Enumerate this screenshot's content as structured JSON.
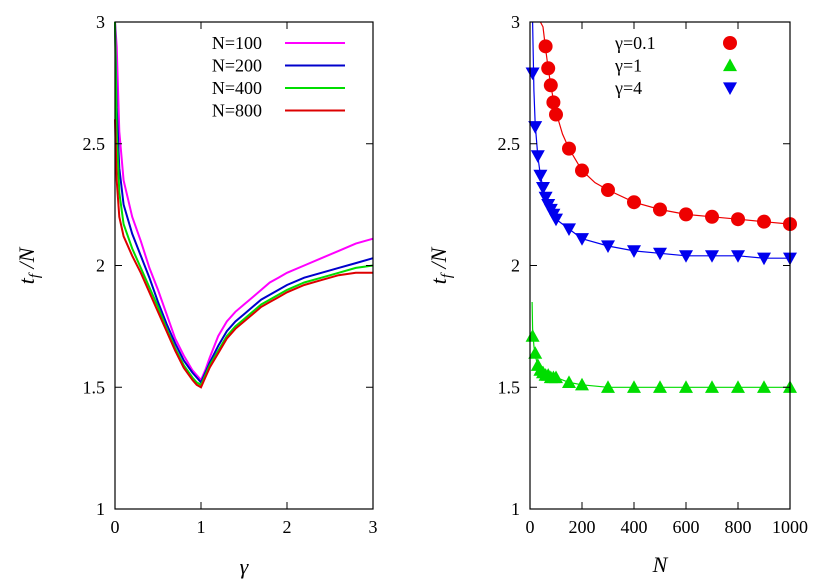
{
  "chart_data": [
    {
      "type": "line",
      "xlabel": "γ",
      "ylabel": "t_f /N",
      "xlim": [
        0,
        3
      ],
      "ylim": [
        1,
        3
      ],
      "xticks": [
        "0",
        "1",
        "2",
        "3"
      ],
      "yticks": [
        "1",
        "1.5",
        "2",
        "2.5",
        "3"
      ],
      "grid": false,
      "legend_position": "top-right",
      "series": [
        {
          "name": "N=100",
          "color": "#ff00ff",
          "x": [
            0,
            0.02,
            0.05,
            0.1,
            0.2,
            0.3,
            0.4,
            0.5,
            0.6,
            0.7,
            0.8,
            0.9,
            0.95,
            1.0,
            1.05,
            1.1,
            1.2,
            1.3,
            1.4,
            1.5,
            1.6,
            1.7,
            1.8,
            1.9,
            2.0,
            2.2,
            2.4,
            2.6,
            2.8,
            3.0
          ],
          "y": [
            3.0,
            2.9,
            2.55,
            2.35,
            2.2,
            2.1,
            1.99,
            1.9,
            1.8,
            1.7,
            1.63,
            1.57,
            1.55,
            1.53,
            1.57,
            1.62,
            1.71,
            1.77,
            1.81,
            1.84,
            1.87,
            1.9,
            1.93,
            1.95,
            1.97,
            2.0,
            2.03,
            2.06,
            2.09,
            2.11
          ]
        },
        {
          "name": "N=200",
          "color": "#0000cc",
          "x": [
            0,
            0.02,
            0.05,
            0.1,
            0.2,
            0.3,
            0.4,
            0.5,
            0.6,
            0.7,
            0.8,
            0.9,
            0.95,
            1.0,
            1.05,
            1.1,
            1.2,
            1.3,
            1.4,
            1.5,
            1.6,
            1.7,
            1.8,
            1.9,
            2.0,
            2.2,
            2.4,
            2.6,
            2.8,
            3.0
          ],
          "y": [
            3.0,
            2.65,
            2.4,
            2.25,
            2.13,
            2.04,
            1.95,
            1.85,
            1.76,
            1.68,
            1.61,
            1.56,
            1.54,
            1.52,
            1.56,
            1.6,
            1.67,
            1.73,
            1.77,
            1.8,
            1.83,
            1.86,
            1.88,
            1.9,
            1.92,
            1.95,
            1.97,
            1.99,
            2.01,
            2.03
          ]
        },
        {
          "name": "N=400",
          "color": "#00dd00",
          "x": [
            0,
            0.02,
            0.05,
            0.1,
            0.2,
            0.3,
            0.4,
            0.5,
            0.6,
            0.7,
            0.8,
            0.9,
            0.95,
            1.0,
            1.05,
            1.1,
            1.2,
            1.3,
            1.4,
            1.5,
            1.6,
            1.7,
            1.8,
            1.9,
            2.0,
            2.2,
            2.4,
            2.6,
            2.8,
            3.0
          ],
          "y": [
            3.0,
            2.55,
            2.3,
            2.17,
            2.07,
            1.99,
            1.91,
            1.83,
            1.74,
            1.66,
            1.59,
            1.54,
            1.52,
            1.51,
            1.55,
            1.59,
            1.65,
            1.71,
            1.75,
            1.78,
            1.81,
            1.84,
            1.86,
            1.88,
            1.9,
            1.93,
            1.95,
            1.97,
            1.99,
            2.0
          ]
        },
        {
          "name": "N=800",
          "color": "#dd0000",
          "x": [
            0,
            0.02,
            0.05,
            0.1,
            0.2,
            0.3,
            0.4,
            0.5,
            0.6,
            0.7,
            0.8,
            0.9,
            0.95,
            1.0,
            1.05,
            1.1,
            1.2,
            1.3,
            1.4,
            1.5,
            1.6,
            1.7,
            1.8,
            1.9,
            2.0,
            2.2,
            2.4,
            2.6,
            2.8,
            3.0
          ],
          "y": [
            2.6,
            2.35,
            2.2,
            2.12,
            2.04,
            1.97,
            1.89,
            1.81,
            1.73,
            1.65,
            1.58,
            1.53,
            1.51,
            1.5,
            1.54,
            1.58,
            1.64,
            1.7,
            1.74,
            1.77,
            1.8,
            1.83,
            1.85,
            1.87,
            1.89,
            1.92,
            1.94,
            1.96,
            1.97,
            1.97
          ]
        }
      ]
    },
    {
      "type": "scatter",
      "xlabel": "N",
      "ylabel": "t_f /N",
      "xlim": [
        0,
        1000
      ],
      "ylim": [
        1,
        3
      ],
      "xticks": [
        "0",
        "200",
        "400",
        "600",
        "800",
        "1000"
      ],
      "yticks": [
        "1",
        "1.5",
        "2",
        "2.5",
        "3"
      ],
      "grid": false,
      "legend_position": "top-right",
      "series": [
        {
          "name": "γ=0.1",
          "marker": "circle",
          "color": "#ee0000",
          "x": [
            60,
            70,
            80,
            90,
            100,
            150,
            200,
            300,
            400,
            500,
            600,
            700,
            800,
            900,
            1000
          ],
          "y": [
            2.9,
            2.81,
            2.74,
            2.67,
            2.62,
            2.48,
            2.39,
            2.31,
            2.26,
            2.23,
            2.21,
            2.2,
            2.19,
            2.18,
            2.17
          ],
          "fit_x": [
            40,
            50,
            60,
            70,
            80,
            90,
            100,
            125,
            150,
            200,
            250,
            300,
            400,
            500,
            600,
            700,
            800,
            900,
            1000
          ],
          "fit_y": [
            3.1,
            2.98,
            2.89,
            2.81,
            2.74,
            2.68,
            2.63,
            2.54,
            2.48,
            2.39,
            2.34,
            2.31,
            2.26,
            2.23,
            2.21,
            2.2,
            2.19,
            2.18,
            2.17
          ]
        },
        {
          "name": "γ=1",
          "marker": "triangle-up",
          "color": "#00dd00",
          "x": [
            10,
            20,
            30,
            40,
            50,
            60,
            70,
            80,
            90,
            100,
            150,
            200,
            300,
            400,
            500,
            600,
            700,
            800,
            900,
            1000
          ],
          "y": [
            1.71,
            1.64,
            1.59,
            1.57,
            1.56,
            1.55,
            1.55,
            1.54,
            1.54,
            1.54,
            1.52,
            1.51,
            1.5,
            1.5,
            1.5,
            1.5,
            1.5,
            1.5,
            1.5,
            1.5
          ],
          "fit_x": [
            8,
            10,
            15,
            20,
            30,
            40,
            50,
            70,
            100,
            150,
            200,
            300,
            400,
            500,
            600,
            700,
            800,
            900,
            1000
          ],
          "fit_y": [
            1.85,
            1.74,
            1.67,
            1.63,
            1.59,
            1.57,
            1.56,
            1.55,
            1.54,
            1.52,
            1.51,
            1.5,
            1.5,
            1.5,
            1.5,
            1.5,
            1.5,
            1.5,
            1.5
          ]
        },
        {
          "name": "γ=4",
          "marker": "triangle-down",
          "color": "#0000ee",
          "x": [
            10,
            20,
            30,
            40,
            50,
            60,
            70,
            80,
            90,
            100,
            150,
            200,
            300,
            400,
            500,
            600,
            700,
            800,
            900,
            1000
          ],
          "y": [
            2.79,
            2.57,
            2.45,
            2.37,
            2.32,
            2.28,
            2.25,
            2.23,
            2.21,
            2.19,
            2.15,
            2.11,
            2.08,
            2.06,
            2.05,
            2.04,
            2.04,
            2.04,
            2.03,
            2.03
          ],
          "fit_x": [
            10,
            15,
            20,
            30,
            40,
            50,
            60,
            70,
            80,
            100,
            150,
            200,
            300,
            400,
            500,
            600,
            700,
            800,
            900,
            1000
          ],
          "fit_y": [
            3.0,
            2.72,
            2.58,
            2.45,
            2.37,
            2.32,
            2.28,
            2.25,
            2.23,
            2.19,
            2.15,
            2.11,
            2.08,
            2.06,
            2.05,
            2.04,
            2.04,
            2.04,
            2.03,
            2.03
          ]
        }
      ]
    }
  ]
}
